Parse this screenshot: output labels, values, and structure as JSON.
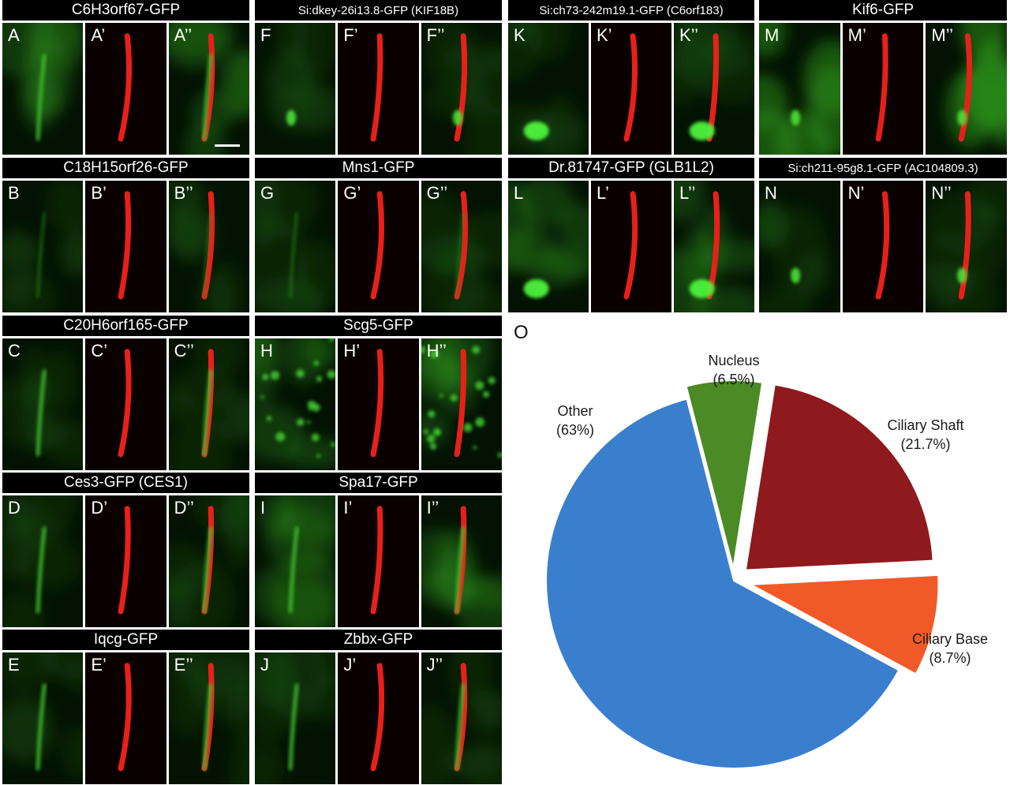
{
  "figure_label_O": "O",
  "rows": [
    [
      {
        "header": "C6H3orf67-GFP",
        "labels": [
          "A",
          "A’",
          "A’’"
        ],
        "green": "line",
        "bg": "medium",
        "scale_bar": true
      },
      {
        "header": "Si:dkey-26i13.8-GFP (KIF18B)",
        "labels": [
          "F",
          "F’",
          "F’’"
        ],
        "green": "base",
        "bg": "dark"
      },
      {
        "header": "Si:ch73-242m19.1-GFP (C6orf183)",
        "labels": [
          "K",
          "K’",
          "K’’"
        ],
        "green": "blob",
        "bg": "dark"
      },
      {
        "header": "Kif6-GFP",
        "labels": [
          "M",
          "M’",
          "M’’"
        ],
        "green": "base",
        "bg": "bright"
      }
    ],
    [
      {
        "header": "C18H15orf26-GFP",
        "labels": [
          "B",
          "B’",
          "B’’"
        ],
        "green": "faint",
        "bg": "dark"
      },
      {
        "header": "Mns1-GFP",
        "labels": [
          "G",
          "G’",
          "G’’"
        ],
        "green": "faint",
        "bg": "dark"
      },
      {
        "header": "Dr.81747-GFP (GLB1L2)",
        "labels": [
          "L",
          "L’",
          "L’’"
        ],
        "green": "blob",
        "bg": "medium"
      },
      {
        "header": "Si:ch211-95g8.1-GFP (AC104809.3)",
        "labels": [
          "N",
          "N’",
          "N’’"
        ],
        "green": "base",
        "bg": "dark"
      }
    ],
    [
      {
        "header": "C20H6orf165-GFP",
        "labels": [
          "C",
          "C’",
          "C’’"
        ],
        "green": "line",
        "bg": "dark"
      },
      {
        "header": "Scg5-GFP",
        "labels": [
          "H",
          "H’",
          "H’’"
        ],
        "green": "speckle",
        "bg": "medium"
      }
    ],
    [
      {
        "header": "Ces3-GFP (CES1)",
        "labels": [
          "D",
          "D’",
          "D’’"
        ],
        "green": "line",
        "bg": "dark"
      },
      {
        "header": "Spa17-GFP",
        "labels": [
          "I",
          "I’",
          "I’’"
        ],
        "green": "line",
        "bg": "medium"
      }
    ],
    [
      {
        "header": "Iqcg-GFP",
        "labels": [
          "E",
          "E’",
          "E’’"
        ],
        "green": "line",
        "bg": "dark"
      },
      {
        "header": "Zbbx-GFP",
        "labels": [
          "J",
          "J’",
          "J’’"
        ],
        "green": "line",
        "bg": "dark"
      }
    ]
  ],
  "chart_data": {
    "type": "pie",
    "slices": [
      {
        "label": "Nucleus",
        "pct_label": "(6.5%)",
        "value": 6.5,
        "color": "#4b8a24",
        "exploded": true
      },
      {
        "label": "Ciliary Shaft",
        "pct_label": "(21.7%)",
        "value": 21.7,
        "color": "#8e1a1e",
        "exploded": true
      },
      {
        "label": "Ciliary Base",
        "pct_label": "(8.7%)",
        "value": 8.7,
        "color": "#f05a28",
        "exploded": true
      },
      {
        "label": "Other",
        "pct_label": "(63%)",
        "value": 63.0,
        "color": "#3a7fce",
        "exploded": false
      }
    ]
  }
}
